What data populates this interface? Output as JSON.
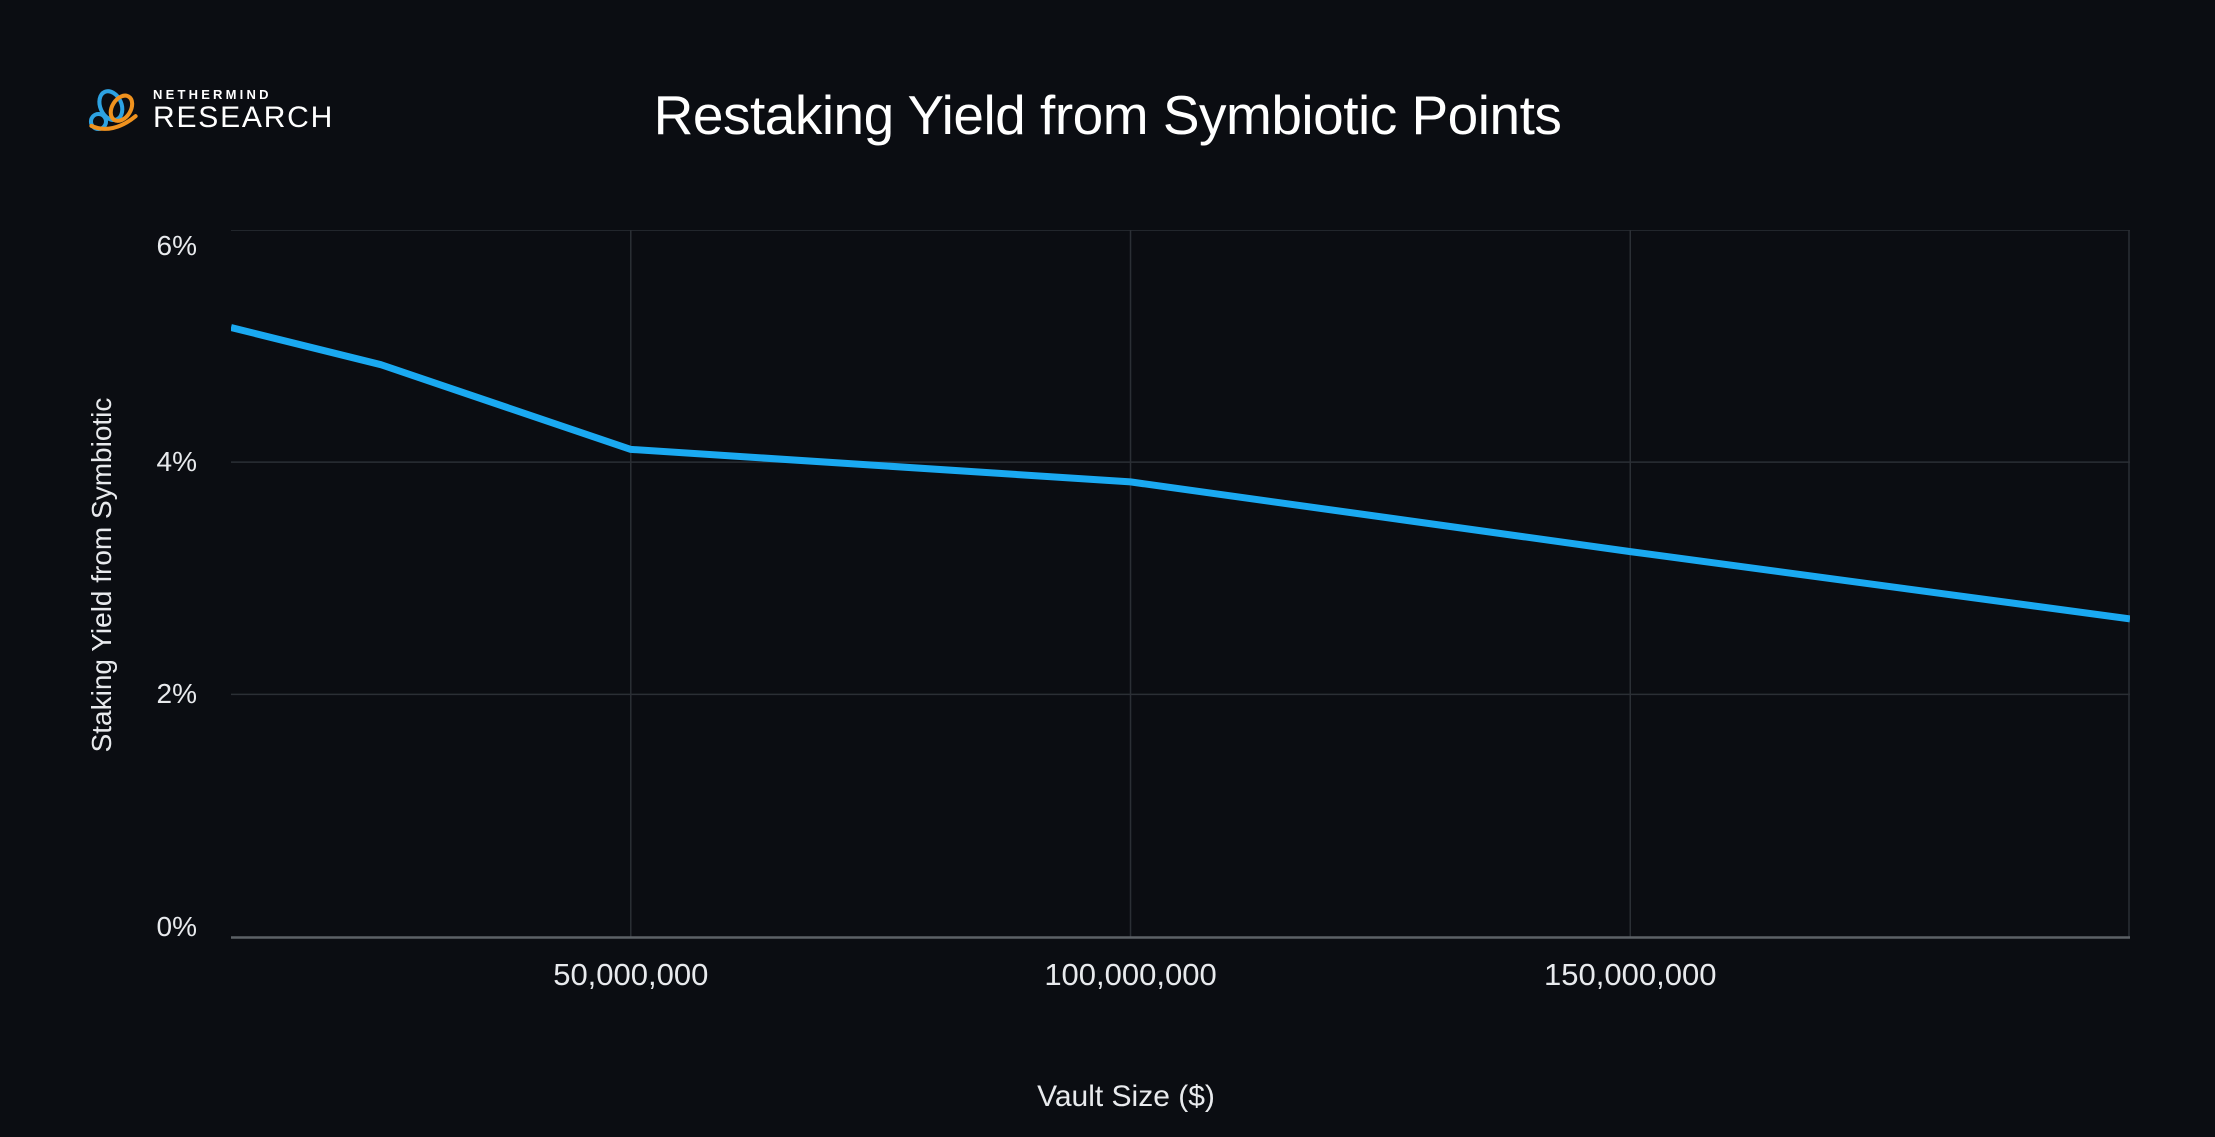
{
  "header": {
    "logo": {
      "line1": "NETHERMIND",
      "line2": "RESEARCH"
    },
    "title": "Restaking Yield from Symbiotic Points"
  },
  "chart_data": {
    "type": "line",
    "title": "Restaking Yield from Symbiotic Points",
    "xlabel": "Vault Size ($)",
    "ylabel": "Staking Yield from Symbiotic",
    "series": [
      {
        "name": "Staking Yield from Symbiotic",
        "x": [
          10000000,
          25000000,
          50000000,
          100000000,
          150000000,
          200000000
        ],
        "y_percent": [
          5.16,
          4.84,
          4.11,
          3.83,
          3.23,
          2.65
        ]
      }
    ],
    "xlim": [
      10000000,
      200000000
    ],
    "ylim": [
      0,
      6
    ],
    "x_ticks": [
      {
        "value": 50000000,
        "label": "50,000,000"
      },
      {
        "value": 100000000,
        "label": "100,000,000"
      },
      {
        "value": 150000000,
        "label": "150,000,000"
      }
    ],
    "x_gridlines": [
      50000000,
      100000000,
      150000000,
      200000000
    ],
    "y_ticks": [
      {
        "value": 0,
        "label": "0%"
      },
      {
        "value": 2,
        "label": "2%"
      },
      {
        "value": 4,
        "label": "4%"
      },
      {
        "value": 6,
        "label": "6%"
      }
    ],
    "y_gridlines": [
      2,
      4,
      6
    ],
    "grid": true,
    "legend": "none",
    "line_color": "#1aa9f1"
  },
  "colors": {
    "background": "#0b0d12",
    "line": "#1aa9f1",
    "grid": "#2b2f35",
    "axis_line": "#5c6166",
    "text_primary": "#ffffff",
    "text_ticks": "#e8eaed",
    "logo_blue": "#2da2e2",
    "logo_orange": "#f0921e"
  }
}
